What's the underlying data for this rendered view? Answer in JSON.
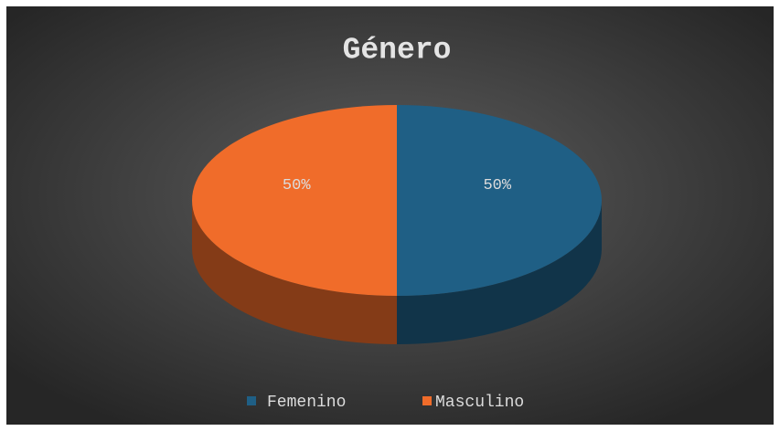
{
  "chart_data": {
    "type": "pie3d",
    "title": "Género",
    "categories": [
      "Femenino",
      "Masculino"
    ],
    "values": [
      50,
      50
    ],
    "value_labels": [
      "50%",
      "50%"
    ],
    "colors": [
      "#1f5f85",
      "#f06c2a"
    ],
    "legend": "bottom"
  }
}
